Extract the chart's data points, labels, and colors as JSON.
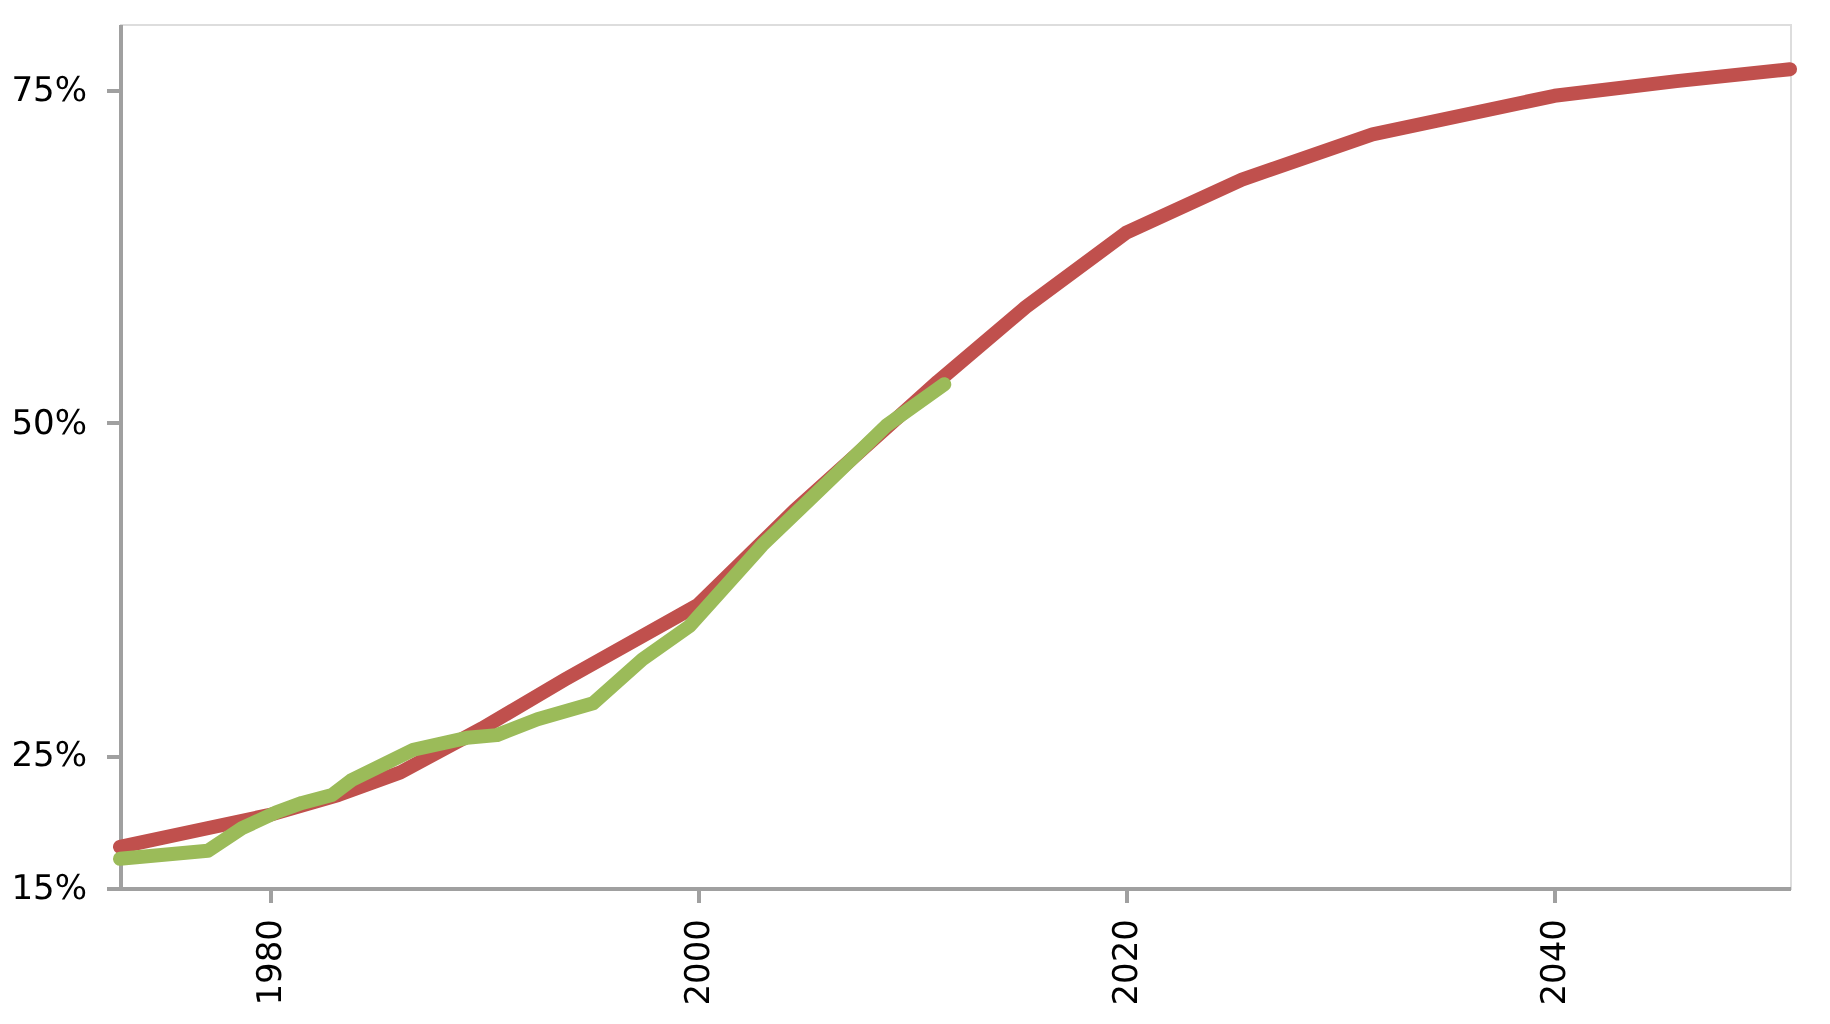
{
  "chart_data": {
    "type": "line",
    "xlim": [
      1973,
      2051
    ],
    "xticks": [
      1980,
      2000,
      2020,
      2040
    ],
    "ylim": [
      15,
      80
    ],
    "yticks": [
      {
        "value": 15,
        "label": "15%"
      },
      {
        "value": 25,
        "label": "25%"
      },
      {
        "value": 50,
        "label": "50%"
      },
      {
        "value": 75,
        "label": "75%"
      }
    ],
    "grid": false,
    "line_style": "solid",
    "marker": "none",
    "series": [
      {
        "color": "#c0504d",
        "x": [
          1973,
          1980,
          1983.2,
          1986.1,
          1989.9,
          1993.8,
          2000,
          2004.5,
          2011.2,
          2015.3,
          2020,
          2025.4,
          2031.5,
          2040,
          2045.7,
          2051
        ],
        "values": [
          18.1,
          20.5,
          22.0,
          23.7,
          27.0,
          30.7,
          36.3,
          43.4,
          53.1,
          58.7,
          64.3,
          68.3,
          71.7,
          74.6,
          75.7,
          76.6
        ]
      },
      {
        "color": "#9bbb59",
        "x": [
          1973,
          1977.1,
          1978.7,
          1980.3,
          1981.5,
          1982.9,
          1983.8,
          1986.7,
          1989.2,
          1990.6,
          1992.5,
          1995.1,
          1997.4,
          1999.6,
          2003.0,
          2006.3,
          2008.8,
          2011.5
        ],
        "values": [
          17.2,
          17.8,
          19.5,
          20.7,
          21.4,
          22.0,
          23.1,
          25.4,
          26.3,
          26.5,
          27.7,
          28.9,
          32.2,
          34.7,
          40.8,
          45.9,
          49.8,
          52.9
        ]
      }
    ]
  }
}
